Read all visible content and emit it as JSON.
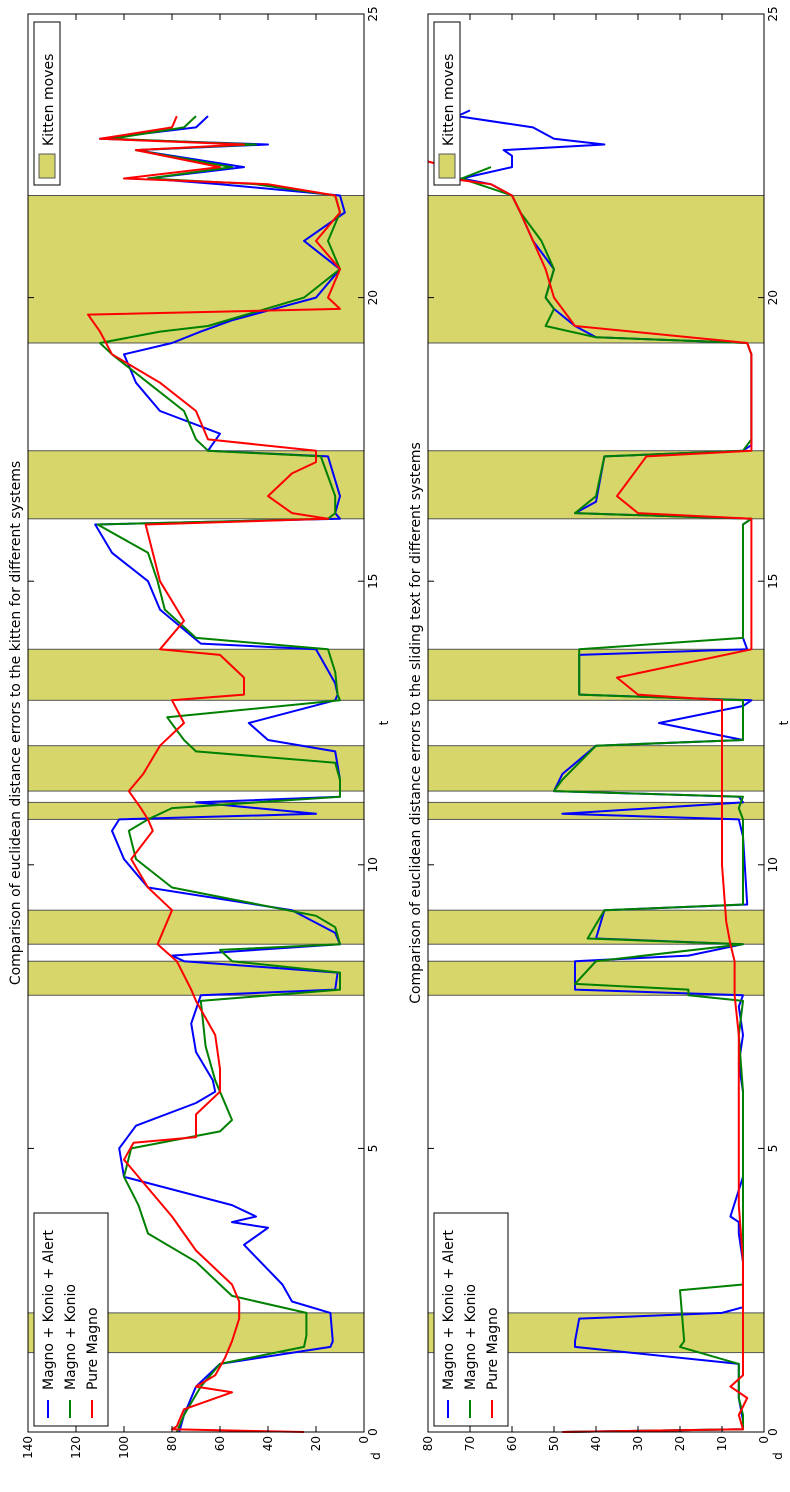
{
  "chart_data": [
    {
      "type": "line",
      "title": "Comparison of euclidean distance errors to the kitten for different systems",
      "xlabel": "t",
      "ylabel": "d",
      "xlim": [
        0,
        25
      ],
      "ylim": [
        0,
        140
      ],
      "xticks": [
        "0",
        "5",
        "10",
        "15",
        "20",
        "25"
      ],
      "yticks": [
        "0",
        "20",
        "40",
        "60",
        "80",
        "100",
        "120",
        "140"
      ],
      "shaded_intervals": [
        [
          1.4,
          2.1
        ],
        [
          7.7,
          8.3
        ],
        [
          8.6,
          9.2
        ],
        [
          10.8,
          11.1
        ],
        [
          11.3,
          12.1
        ],
        [
          12.9,
          13.8
        ],
        [
          16.1,
          17.3
        ],
        [
          19.2,
          21.8
        ]
      ],
      "shaded_label": "Kitten moves",
      "series": [
        {
          "name": "Magno + Konio + Alert",
          "color": "#0000ff",
          "x": [
            0,
            0.3,
            0.8,
            1.2,
            1.5,
            1.6,
            2.1,
            2.3,
            2.6,
            3.3,
            3.6,
            3.7,
            3.8,
            4.0,
            4.5,
            5.0,
            5.4,
            5.8,
            6.0,
            6.2,
            6.7,
            7.2,
            7.7,
            7.8,
            8.1,
            8.3,
            8.4,
            8.6,
            8.8,
            9.2,
            9.6,
            10.1,
            10.6,
            10.8,
            10.9,
            11.1,
            11.2,
            11.5,
            12.0,
            12.2,
            12.5,
            12.9,
            13.0,
            13.2,
            13.8,
            13.9,
            14.5,
            15.0,
            15.5,
            16.0,
            16.1,
            16.2,
            16.5,
            17.2,
            17.3,
            17.6,
            18.0,
            18.5,
            19.0,
            19.2,
            19.4,
            19.6,
            20.0,
            20.5,
            21.0,
            21.5,
            21.8,
            22.0,
            22.1,
            22.3,
            22.6,
            22.7,
            22.8,
            23.0,
            23.2
          ],
          "values": [
            77,
            75,
            70,
            60,
            14,
            13,
            14,
            30,
            34,
            50,
            40,
            55,
            45,
            55,
            100,
            102,
            95,
            70,
            62,
            63,
            70,
            72,
            68,
            12,
            11,
            75,
            80,
            10,
            12,
            30,
            90,
            100,
            105,
            102,
            20,
            70,
            10,
            10,
            12,
            40,
            48,
            12,
            11,
            12,
            20,
            68,
            85,
            90,
            105,
            112,
            10,
            12,
            10,
            15,
            65,
            60,
            85,
            95,
            100,
            80,
            68,
            55,
            20,
            10,
            25,
            8,
            10,
            60,
            90,
            50,
            95,
            40,
            110,
            70,
            65
          ]
        },
        {
          "name": "Magno + Konio",
          "color": "#008000",
          "x": [
            0,
            0.3,
            0.8,
            1.2,
            1.5,
            1.7,
            2.1,
            2.4,
            3.0,
            3.5,
            4.0,
            4.5,
            5.0,
            5.3,
            5.5,
            6.0,
            6.2,
            6.8,
            7.6,
            7.8,
            8.1,
            8.3,
            8.5,
            8.6,
            8.9,
            9.1,
            9.6,
            10.1,
            10.6,
            10.8,
            11.0,
            11.2,
            11.5,
            11.8,
            12.0,
            12.2,
            12.6,
            12.9,
            13.0,
            13.4,
            13.8,
            14.0,
            14.5,
            15.0,
            15.5,
            16.0,
            16.1,
            16.2,
            16.5,
            17.2,
            17.3,
            17.5,
            18.0,
            18.5,
            19.0,
            19.2,
            19.4,
            19.5,
            20.0,
            20.5,
            21.0,
            21.5,
            21.8,
            22.0,
            22.1,
            22.3,
            22.6,
            22.7,
            22.8,
            23.0,
            23.2
          ],
          "values": [
            78,
            75,
            68,
            60,
            25,
            24,
            24,
            55,
            70,
            90,
            94,
            100,
            97,
            60,
            55,
            60,
            62,
            66,
            68,
            10,
            10,
            55,
            60,
            10,
            12,
            20,
            80,
            95,
            98,
            90,
            80,
            10,
            10,
            12,
            70,
            75,
            82,
            10,
            11,
            12,
            15,
            70,
            83,
            86,
            90,
            111,
            15,
            12,
            12,
            18,
            65,
            70,
            75,
            90,
            105,
            110,
            85,
            65,
            25,
            10,
            15,
            10,
            12,
            45,
            90,
            55,
            95,
            45,
            105,
            75,
            70
          ]
        },
        {
          "name": "Pure Magno",
          "color": "#ff0000",
          "x": [
            0,
            0.05,
            0.1,
            0.4,
            0.7,
            0.8,
            1.0,
            1.3,
            1.6,
            2.0,
            2.3,
            2.6,
            3.2,
            3.8,
            4.3,
            4.8,
            5.1,
            5.2,
            5.6,
            6.0,
            6.4,
            7.0,
            7.6,
            7.8,
            8.3,
            8.6,
            9.2,
            9.6,
            10.1,
            10.6,
            10.8,
            11.0,
            11.3,
            11.6,
            12.1,
            12.5,
            12.9,
            13.0,
            13.3,
            13.7,
            13.8,
            14.3,
            15.0,
            15.5,
            16.0,
            16.1,
            16.2,
            16.5,
            16.9,
            17.1,
            17.3,
            17.5,
            18.0,
            18.5,
            19.0,
            19.4,
            19.7,
            19.8,
            20.0,
            20.5,
            21.0,
            21.5,
            21.8,
            22.0,
            22.1,
            22.3,
            22.6,
            22.7,
            22.8,
            23.0,
            23.2
          ],
          "values": [
            25,
            80,
            78,
            75,
            55,
            70,
            62,
            58,
            55,
            52,
            52,
            55,
            70,
            80,
            90,
            100,
            96,
            70,
            70,
            60,
            60,
            62,
            70,
            72,
            78,
            86,
            80,
            90,
            97,
            88,
            90,
            93,
            98,
            92,
            85,
            75,
            80,
            50,
            50,
            60,
            85,
            75,
            85,
            88,
            91,
            15,
            30,
            40,
            30,
            20,
            20,
            65,
            70,
            85,
            105,
            110,
            115,
            10,
            15,
            10,
            20,
            10,
            12,
            40,
            100,
            60,
            95,
            50,
            110,
            80,
            78
          ]
        }
      ]
    },
    {
      "type": "line",
      "title": "Comparison of euclidean distance errors to the sliding text for different systems",
      "xlabel": "t",
      "ylabel": "d",
      "xlim": [
        0,
        25
      ],
      "ylim": [
        0,
        80
      ],
      "xticks": [
        "0",
        "5",
        "10",
        "15",
        "20",
        "25"
      ],
      "yticks": [
        "0",
        "10",
        "20",
        "30",
        "40",
        "50",
        "60",
        "70",
        "80"
      ],
      "shaded_intervals": [
        [
          1.4,
          2.1
        ],
        [
          7.7,
          8.3
        ],
        [
          8.6,
          9.2
        ],
        [
          10.8,
          11.1
        ],
        [
          11.3,
          12.1
        ],
        [
          12.9,
          13.8
        ],
        [
          16.1,
          17.3
        ],
        [
          19.2,
          21.8
        ]
      ],
      "shaded_label": "Kitten moves",
      "series": [
        {
          "name": "Magno + Konio + Alert",
          "color": "#0000ff",
          "x": [
            0,
            0.05,
            0.2,
            0.6,
            1.2,
            1.5,
            1.6,
            2.0,
            2.1,
            2.2,
            3.0,
            3.5,
            3.7,
            3.8,
            4.5,
            5.5,
            6.0,
            6.5,
            7.0,
            7.5,
            7.7,
            7.8,
            8.3,
            8.4,
            8.6,
            8.7,
            9.2,
            9.3,
            10.5,
            10.8,
            10.9,
            11.1,
            11.2,
            11.3,
            11.6,
            12.1,
            12.2,
            12.5,
            12.8,
            12.9,
            13.0,
            13.7,
            13.8,
            14.0,
            15.0,
            16.0,
            16.1,
            16.2,
            16.4,
            17.2,
            17.3,
            17.4,
            19.0,
            19.2,
            19.3,
            19.5,
            19.8,
            20.0,
            20.5,
            21.0,
            21.5,
            21.8,
            22.0,
            22.1,
            22.3,
            22.5,
            22.6,
            22.7,
            22.8,
            23.0,
            23.2,
            23.3
          ],
          "values": [
            48,
            5,
            5,
            6,
            6,
            45,
            45,
            44,
            10,
            5,
            5,
            6,
            6,
            8,
            5,
            5,
            5,
            6,
            5,
            6,
            5,
            45,
            45,
            18,
            5,
            40,
            38,
            4,
            5,
            6,
            48,
            5,
            6,
            50,
            48,
            40,
            5,
            25,
            5,
            3,
            44,
            44,
            4,
            5,
            5,
            5,
            3,
            45,
            40,
            38,
            5,
            3,
            3,
            4,
            40,
            45,
            50,
            52,
            50,
            55,
            58,
            60,
            65,
            72,
            60,
            60,
            62,
            38,
            50,
            55,
            73,
            70
          ]
        },
        {
          "name": "Magno + Konio",
          "color": "#008000",
          "x": [
            0,
            0.05,
            0.3,
            0.6,
            1.2,
            1.5,
            1.6,
            2.5,
            2.6,
            3.0,
            3.5,
            4.0,
            5.0,
            6.0,
            7.0,
            7.6,
            7.7,
            7.8,
            7.9,
            8.3,
            8.6,
            8.7,
            9.2,
            9.3,
            10.5,
            10.8,
            11.0,
            11.2,
            11.3,
            11.5,
            12.1,
            12.2,
            12.9,
            13.0,
            13.8,
            14.0,
            15.0,
            16.0,
            16.1,
            16.2,
            16.5,
            17.2,
            17.3,
            17.5,
            19.0,
            19.2,
            19.3,
            19.5,
            19.8,
            20.0,
            20.5,
            21.0,
            21.5,
            21.8,
            22.0,
            22.1,
            22.3
          ],
          "values": [
            48,
            5,
            5,
            6,
            6,
            20,
            19,
            20,
            5,
            5,
            5,
            5,
            5,
            5,
            6,
            5,
            18,
            18,
            45,
            40,
            5,
            42,
            38,
            5,
            5,
            5,
            6,
            5,
            50,
            48,
            40,
            5,
            5,
            44,
            44,
            5,
            5,
            5,
            3,
            45,
            40,
            38,
            5,
            3,
            3,
            4,
            40,
            52,
            50,
            52,
            50,
            53,
            58,
            60,
            68,
            72,
            65
          ]
        },
        {
          "name": "Pure Magno",
          "color": "#ff0000",
          "x": [
            0,
            0.05,
            0.3,
            0.6,
            0.8,
            1.0,
            1.3,
            2.0,
            3.0,
            4.0,
            5.0,
            6.0,
            7.0,
            7.7,
            8.3,
            8.6,
            9.0,
            10.0,
            11.0,
            12.0,
            12.9,
            13.0,
            13.3,
            13.8,
            14.0,
            15.0,
            16.0,
            16.1,
            16.2,
            16.5,
            17.0,
            17.2,
            17.3,
            17.5,
            19.0,
            19.2,
            19.5,
            19.8,
            20.0,
            20.5,
            21.0,
            21.5,
            21.8,
            22.0,
            22.1,
            22.3,
            22.4
          ],
          "values": [
            48,
            5,
            6,
            4,
            8,
            5,
            5,
            5,
            5,
            6,
            6,
            6,
            6,
            7,
            7,
            8,
            9,
            10,
            10,
            10,
            10,
            30,
            35,
            3,
            3,
            3,
            3,
            3,
            30,
            35,
            30,
            28,
            3,
            3,
            3,
            4,
            45,
            48,
            50,
            52,
            55,
            58,
            60,
            65,
            75,
            75,
            80
          ]
        }
      ]
    }
  ]
}
